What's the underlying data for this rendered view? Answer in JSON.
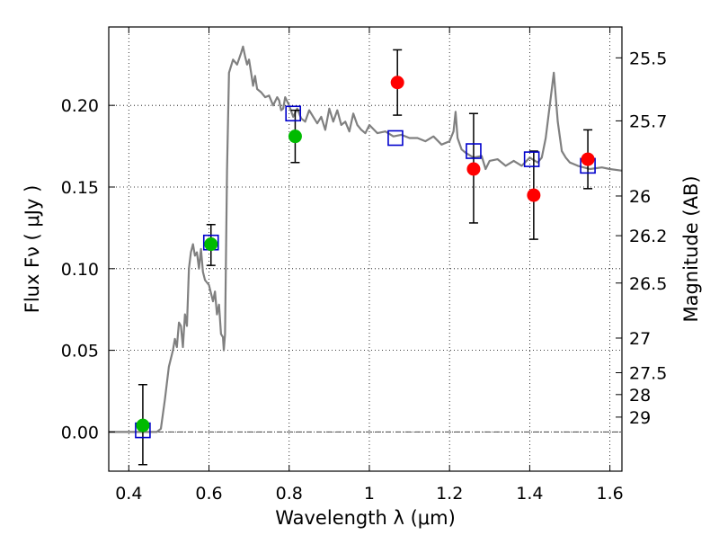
{
  "chart_data": {
    "type": "scatter",
    "xlabel": "Wavelength  λ (μm)",
    "ylabel": "Flux  Fν  ( μJy )",
    "y2label": "Magnitude (AB)",
    "xlim": [
      0.35,
      1.63
    ],
    "ylim": [
      -0.024,
      0.248
    ],
    "grid": true,
    "x_ticks": [
      "0.4",
      "0.6",
      "0.8",
      "1",
      "1.2",
      "1.4",
      "1.6"
    ],
    "x_tick_values": [
      0.4,
      0.6,
      0.8,
      1.0,
      1.2,
      1.4,
      1.6
    ],
    "y_ticks": [
      "0.00",
      "0.05",
      "0.10",
      "0.15",
      "0.20"
    ],
    "y_tick_values": [
      0.0,
      0.05,
      0.1,
      0.15,
      0.2
    ],
    "mag_ticks": [
      "25.5",
      "25.7",
      "26",
      "26.2",
      "26.5",
      "27",
      "27.5",
      "28",
      "29"
    ],
    "mag_tick_flux": [
      0.2291,
      0.1905,
      0.1445,
      0.1202,
      0.0912,
      0.0575,
      0.0363,
      0.0229,
      0.0091
    ],
    "colors": {
      "model_line": "#808080",
      "model_boxes": "#0000cc",
      "green_points": "#00bb00",
      "red_points": "#ff0000",
      "error_bars": "#000000"
    },
    "series": [
      {
        "x": [
          0.35,
          0.4,
          0.44,
          0.46,
          0.47,
          0.48,
          0.49,
          0.5,
          0.51,
          0.515,
          0.52,
          0.525,
          0.53,
          0.535,
          0.54,
          0.545,
          0.55,
          0.555,
          0.56,
          0.565,
          0.57,
          0.575,
          0.58,
          0.585,
          0.59,
          0.6,
          0.61,
          0.615,
          0.62,
          0.625,
          0.63,
          0.635,
          0.637,
          0.64,
          0.645,
          0.65,
          0.66,
          0.67,
          0.68,
          0.685,
          0.69,
          0.695,
          0.7,
          0.705,
          0.71,
          0.715,
          0.72,
          0.73,
          0.74,
          0.75,
          0.76,
          0.77,
          0.775,
          0.78,
          0.785,
          0.79,
          0.8,
          0.81,
          0.82,
          0.83,
          0.84,
          0.85,
          0.86,
          0.87,
          0.88,
          0.89,
          0.9,
          0.91,
          0.92,
          0.93,
          0.94,
          0.95,
          0.96,
          0.97,
          0.98,
          0.99,
          1.0,
          1.02,
          1.04,
          1.06,
          1.08,
          1.1,
          1.12,
          1.14,
          1.16,
          1.18,
          1.2,
          1.21,
          1.215,
          1.22,
          1.23,
          1.24,
          1.26,
          1.28,
          1.29,
          1.3,
          1.32,
          1.34,
          1.36,
          1.38,
          1.4,
          1.42,
          1.43,
          1.44,
          1.45,
          1.46,
          1.47,
          1.48,
          1.49,
          1.5,
          1.52,
          1.55,
          1.58,
          1.6,
          1.63
        ],
        "values": [
          0,
          0,
          0,
          0,
          0,
          0.002,
          0.02,
          0.04,
          0.05,
          0.057,
          0.052,
          0.067,
          0.065,
          0.052,
          0.072,
          0.065,
          0.1,
          0.11,
          0.115,
          0.108,
          0.11,
          0.1,
          0.112,
          0.098,
          0.093,
          0.09,
          0.08,
          0.086,
          0.072,
          0.078,
          0.06,
          0.058,
          0.05,
          0.06,
          0.16,
          0.22,
          0.228,
          0.225,
          0.232,
          0.236,
          0.23,
          0.225,
          0.228,
          0.22,
          0.212,
          0.218,
          0.21,
          0.208,
          0.205,
          0.206,
          0.2,
          0.205,
          0.203,
          0.197,
          0.198,
          0.205,
          0.2,
          0.193,
          0.198,
          0.192,
          0.19,
          0.197,
          0.193,
          0.189,
          0.193,
          0.185,
          0.198,
          0.19,
          0.197,
          0.188,
          0.19,
          0.184,
          0.195,
          0.188,
          0.185,
          0.183,
          0.188,
          0.183,
          0.184,
          0.181,
          0.182,
          0.18,
          0.18,
          0.178,
          0.181,
          0.176,
          0.178,
          0.184,
          0.196,
          0.18,
          0.173,
          0.171,
          0.168,
          0.169,
          0.161,
          0.166,
          0.167,
          0.163,
          0.166,
          0.163,
          0.168,
          0.165,
          0.168,
          0.18,
          0.2,
          0.22,
          0.19,
          0.172,
          0.168,
          0.165,
          0.163,
          0.161,
          0.162,
          0.161,
          0.16
        ],
        "style": "line"
      },
      {
        "x": [
          0.435,
          0.605,
          0.81,
          1.065,
          1.26,
          1.405,
          1.545
        ],
        "values": [
          0.001,
          0.116,
          0.195,
          0.18,
          0.172,
          0.167,
          0.163
        ],
        "style": "open-square"
      },
      {
        "x": [
          0.435,
          0.605,
          0.815
        ],
        "values": [
          0.004,
          0.115,
          0.181
        ],
        "err_low": [
          0.024,
          0.013,
          0.016
        ],
        "err_high": [
          0.025,
          0.012,
          0.016
        ],
        "style": "filled-circle"
      },
      {
        "x": [
          1.07,
          1.26,
          1.41,
          1.545
        ],
        "values": [
          0.214,
          0.161,
          0.145,
          0.167
        ],
        "err_low": [
          0.02,
          0.033,
          0.027,
          0.018
        ],
        "err_high": [
          0.02,
          0.034,
          0.027,
          0.018
        ],
        "style": "filled-circle"
      }
    ]
  }
}
